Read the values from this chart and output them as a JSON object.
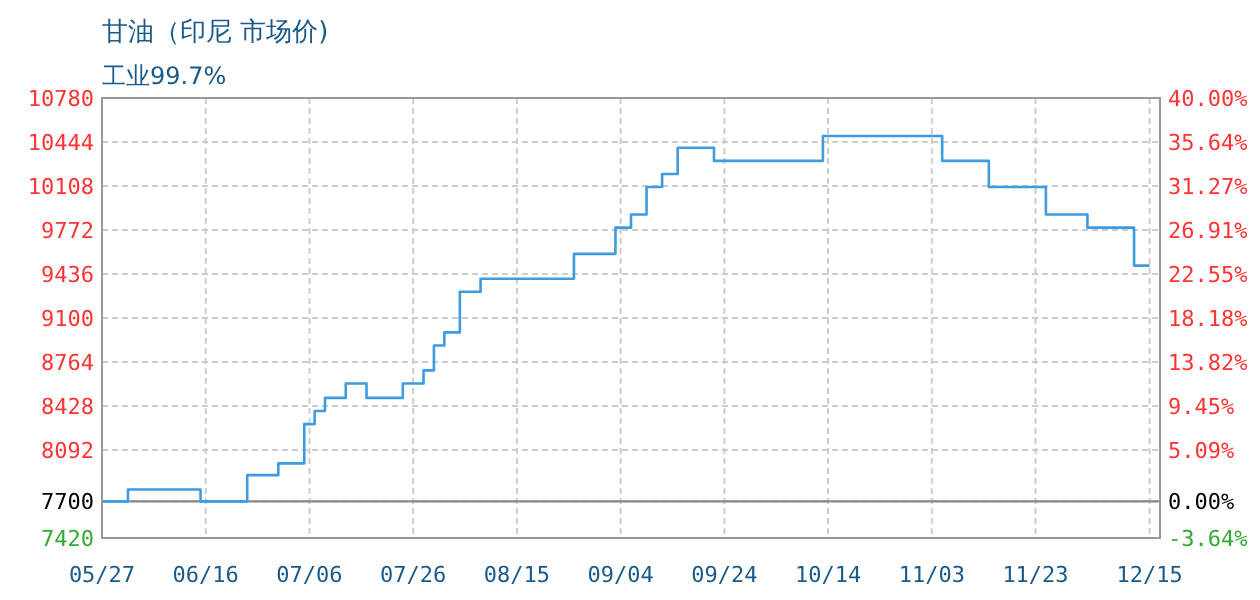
{
  "chart_data": {
    "type": "step",
    "title": "甘油（印尼 市场价)",
    "subtitle": "工业99.7%",
    "x": [
      "--05-27",
      "--06-01",
      "--06-15",
      "--06-24",
      "--06-30",
      "--07-05",
      "--07-07",
      "--07-09",
      "--07-13",
      "--07-17",
      "--07-24",
      "--07-28",
      "--07-30",
      "--08-01",
      "--08-04",
      "--08-08",
      "--08-26",
      "--09-03",
      "--09-06",
      "--09-09",
      "--09-12",
      "--09-15",
      "--09-22",
      "--10-13",
      "--11-05",
      "--11-14",
      "--11-25",
      "--12-03",
      "--12-12",
      "--12-15"
    ],
    "series": [
      {
        "color": "#3d9be0",
        "values": [
          7700,
          7790,
          7700,
          7900,
          7990,
          8290,
          8390,
          8490,
          8600,
          8490,
          8600,
          8700,
          8890,
          8990,
          9300,
          9400,
          9590,
          9790,
          9890,
          10100,
          10200,
          10400,
          10300,
          10490,
          10300,
          10100,
          9890,
          9790,
          9500,
          9500
        ]
      }
    ],
    "xlim": [
      "--05-27",
      "--12-17"
    ],
    "xticks": [
      {
        "value": "--05-27",
        "label": "05/27"
      },
      {
        "value": "--06-16",
        "label": "06/16"
      },
      {
        "value": "--07-06",
        "label": "07/06"
      },
      {
        "value": "--07-26",
        "label": "07/26"
      },
      {
        "value": "--08-15",
        "label": "08/15"
      },
      {
        "value": "--09-04",
        "label": "09/04"
      },
      {
        "value": "--09-24",
        "label": "09/24"
      },
      {
        "value": "--10-14",
        "label": "10/14"
      },
      {
        "value": "--11-03",
        "label": "11/03"
      },
      {
        "value": "--11-23",
        "label": "11/23"
      },
      {
        "value": "--12-15",
        "label": "12/15"
      }
    ],
    "ylim": [
      7420,
      10780
    ],
    "yticks": [
      7420,
      7700,
      8092,
      8428,
      8764,
      9100,
      9436,
      9772,
      10108,
      10444,
      10780
    ],
    "y2lim": [
      -3.64,
      40
    ],
    "y2ticks": [
      {
        "value": -3.64,
        "label": "-3.64%"
      },
      {
        "value": 0,
        "label": "0.00%"
      },
      {
        "value": 5.09,
        "label": "5.09%"
      },
      {
        "value": 9.45,
        "label": "9.45%"
      },
      {
        "value": 13.82,
        "label": "13.82%"
      },
      {
        "value": 18.18,
        "label": "18.18%"
      },
      {
        "value": 22.55,
        "label": "22.55%"
      },
      {
        "value": 26.91,
        "label": "26.91%"
      },
      {
        "value": 31.27,
        "label": "31.27%"
      },
      {
        "value": 35.64,
        "label": "35.64%"
      },
      {
        "value": 40,
        "label": "40.00%"
      }
    ],
    "ref_lines": [
      {
        "axis": "y",
        "value": 7700,
        "color": "#888888"
      }
    ],
    "grid": true
  }
}
